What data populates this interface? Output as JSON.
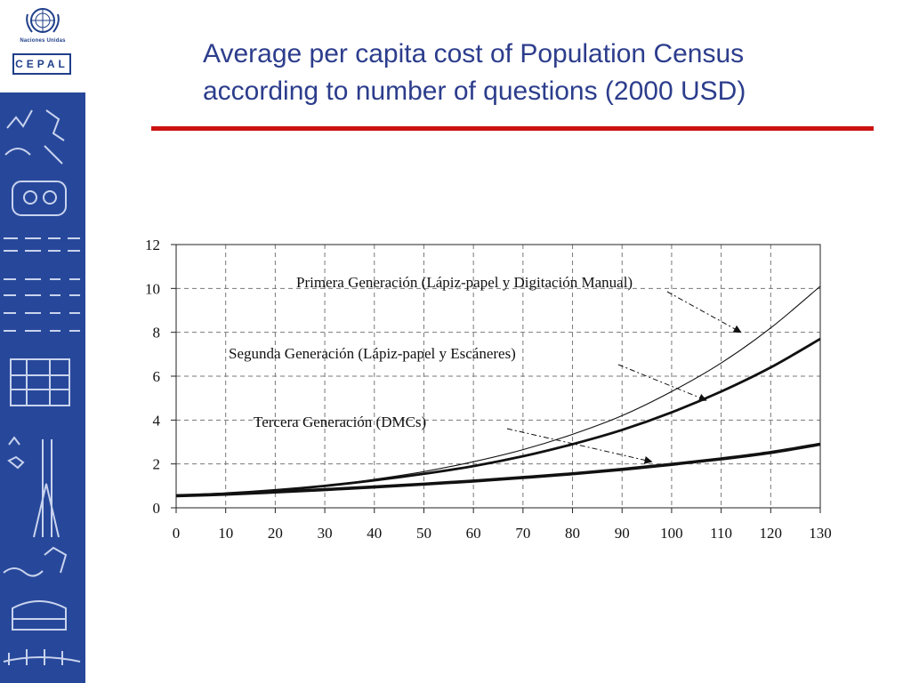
{
  "header": {
    "title_line1": "Average per capita cost of Population Census",
    "title_line2": "according to number of questions (2000 USD)"
  },
  "logo": {
    "org_label": "Naciones Unidas",
    "cepal_label": "CEPAL"
  },
  "colors": {
    "brand_blue": "#27489a",
    "title_blue": "#2c3d8c",
    "rule_red": "#cc1111"
  },
  "chart_data": {
    "type": "line",
    "title": "",
    "xlabel": "",
    "ylabel": "",
    "xlim": [
      0,
      130
    ],
    "ylim": [
      0,
      12
    ],
    "xticks": [
      0,
      10,
      20,
      30,
      40,
      50,
      60,
      70,
      80,
      90,
      100,
      110,
      120,
      130
    ],
    "yticks": [
      0,
      2,
      4,
      6,
      8,
      10,
      12
    ],
    "grid": true,
    "x": [
      0,
      10,
      20,
      30,
      40,
      50,
      60,
      70,
      80,
      90,
      100,
      110,
      120,
      130
    ],
    "series": [
      {
        "name": "Primera Generación (Lápiz-papel y Digitación Manual)",
        "values": [
          0.55,
          0.65,
          0.8,
          1.0,
          1.3,
          1.65,
          2.1,
          2.65,
          3.35,
          4.2,
          5.3,
          6.6,
          8.2,
          10.1
        ]
      },
      {
        "name": "Segunda Generación (Lápiz-papel y Escáneres)",
        "values": [
          0.55,
          0.65,
          0.8,
          1.0,
          1.25,
          1.55,
          1.9,
          2.35,
          2.9,
          3.55,
          4.35,
          5.3,
          6.4,
          7.7
        ]
      },
      {
        "name": "Tercera Generación (DMCs)",
        "values": [
          0.55,
          0.62,
          0.72,
          0.83,
          0.95,
          1.08,
          1.22,
          1.38,
          1.55,
          1.75,
          1.98,
          2.23,
          2.52,
          2.9
        ]
      }
    ]
  }
}
